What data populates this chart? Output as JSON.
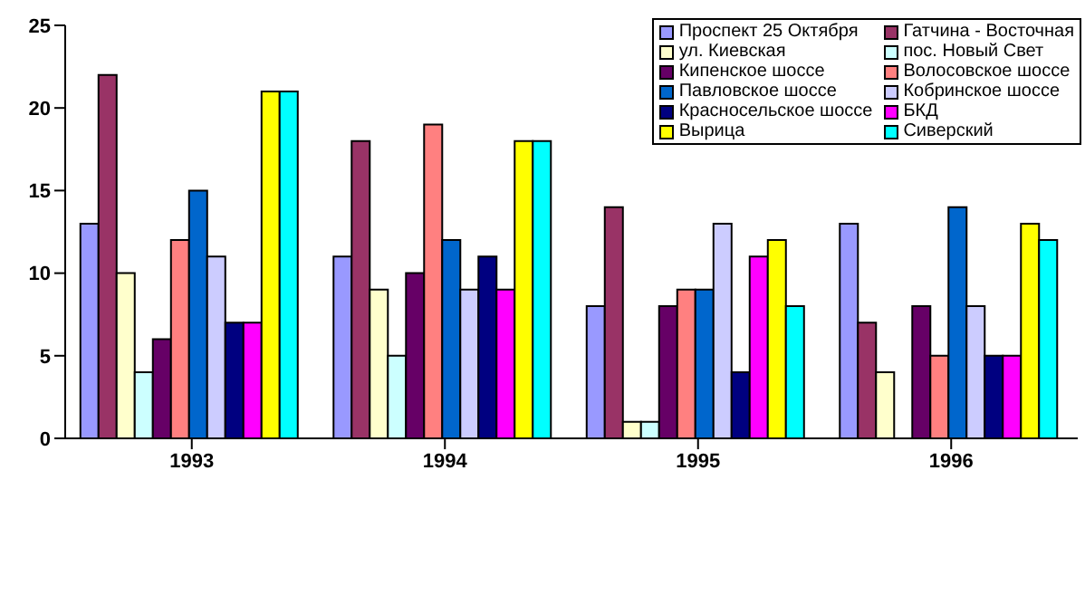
{
  "chart_data": {
    "type": "bar",
    "categories": [
      "1993",
      "1994",
      "1995",
      "1996"
    ],
    "series": [
      {
        "name": "Проспект 25 Октября",
        "color": "#9999ff",
        "values": [
          13,
          11,
          8,
          13
        ]
      },
      {
        "name": "Гатчина - Восточная",
        "color": "#993366",
        "values": [
          22,
          18,
          14,
          7
        ]
      },
      {
        "name": "ул. Киевская",
        "color": "#ffffcc",
        "values": [
          10,
          9,
          1,
          4
        ]
      },
      {
        "name": "пос. Новый Свет",
        "color": "#ccffff",
        "values": [
          4,
          5,
          1,
          0
        ]
      },
      {
        "name": "Кипенское шоссе",
        "color": "#660066",
        "values": [
          6,
          10,
          8,
          8
        ]
      },
      {
        "name": "Волосовское шоссе",
        "color": "#ff8080",
        "values": [
          12,
          19,
          9,
          5
        ]
      },
      {
        "name": "Павловское шоссе",
        "color": "#0066cc",
        "values": [
          15,
          12,
          9,
          14
        ]
      },
      {
        "name": "Кобринское шоссе",
        "color": "#ccccff",
        "values": [
          11,
          9,
          13,
          8
        ]
      },
      {
        "name": "Красносельское шоссе",
        "color": "#000080",
        "values": [
          7,
          11,
          4,
          5
        ]
      },
      {
        "name": "БКД",
        "color": "#ff00ff",
        "values": [
          7,
          9,
          11,
          5
        ]
      },
      {
        "name": "Вырица",
        "color": "#ffff00",
        "values": [
          21,
          18,
          12,
          13
        ]
      },
      {
        "name": "Сиверский",
        "color": "#00ffff",
        "values": [
          21,
          18,
          8,
          12
        ]
      }
    ],
    "ylim": [
      0,
      25
    ],
    "yticks": [
      0,
      5,
      10,
      15,
      20,
      25
    ],
    "grid": false,
    "legend": "top right"
  }
}
